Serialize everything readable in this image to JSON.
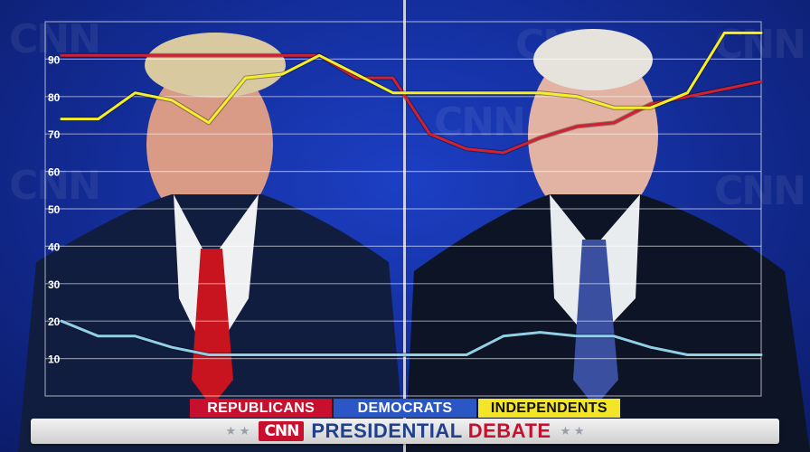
{
  "chart_data": {
    "type": "line",
    "x": [
      0,
      1,
      2,
      3,
      4,
      5,
      6,
      7,
      8,
      9,
      10,
      11,
      12,
      13,
      14,
      15,
      16,
      17,
      18,
      19
    ],
    "yticks": [
      10,
      20,
      30,
      40,
      50,
      60,
      70,
      80,
      90
    ],
    "ylim": [
      0,
      100
    ],
    "grid": true,
    "legend_position": "bottom",
    "series": [
      {
        "name": "REPUBLICANS",
        "color": "#d1202f",
        "values": [
          91,
          91,
          91,
          91,
          91,
          91,
          91,
          91,
          85,
          85,
          70,
          66,
          65,
          69,
          72,
          73,
          78,
          80,
          82,
          84
        ]
      },
      {
        "name": "DEMOCRATS",
        "color": "#8fd0e8",
        "values": [
          20,
          16,
          16,
          13,
          11,
          11,
          11,
          11,
          11,
          11,
          11,
          11,
          16,
          17,
          16,
          16,
          13,
          11,
          11,
          11
        ]
      },
      {
        "name": "INDEPENDENTS",
        "color": "#f5ee2a",
        "values": [
          74,
          74,
          81,
          79,
          73,
          85,
          86,
          91,
          86,
          81,
          81,
          81,
          81,
          81,
          80,
          77,
          77,
          81,
          97,
          97
        ]
      }
    ]
  },
  "legend": {
    "republicans": "REPUBLICANS",
    "democrats": "DEMOCRATS",
    "independents": "INDEPENDENTS"
  },
  "banner": {
    "brand": "CNN",
    "title_part1": "PRESIDENTIAL",
    "title_part2": "DEBATE"
  },
  "watermark": "CNN",
  "colors": {
    "background": "#142f9e",
    "republicans": "#c8102e",
    "democrats": "#2a56c6",
    "independents": "#f3e527"
  }
}
